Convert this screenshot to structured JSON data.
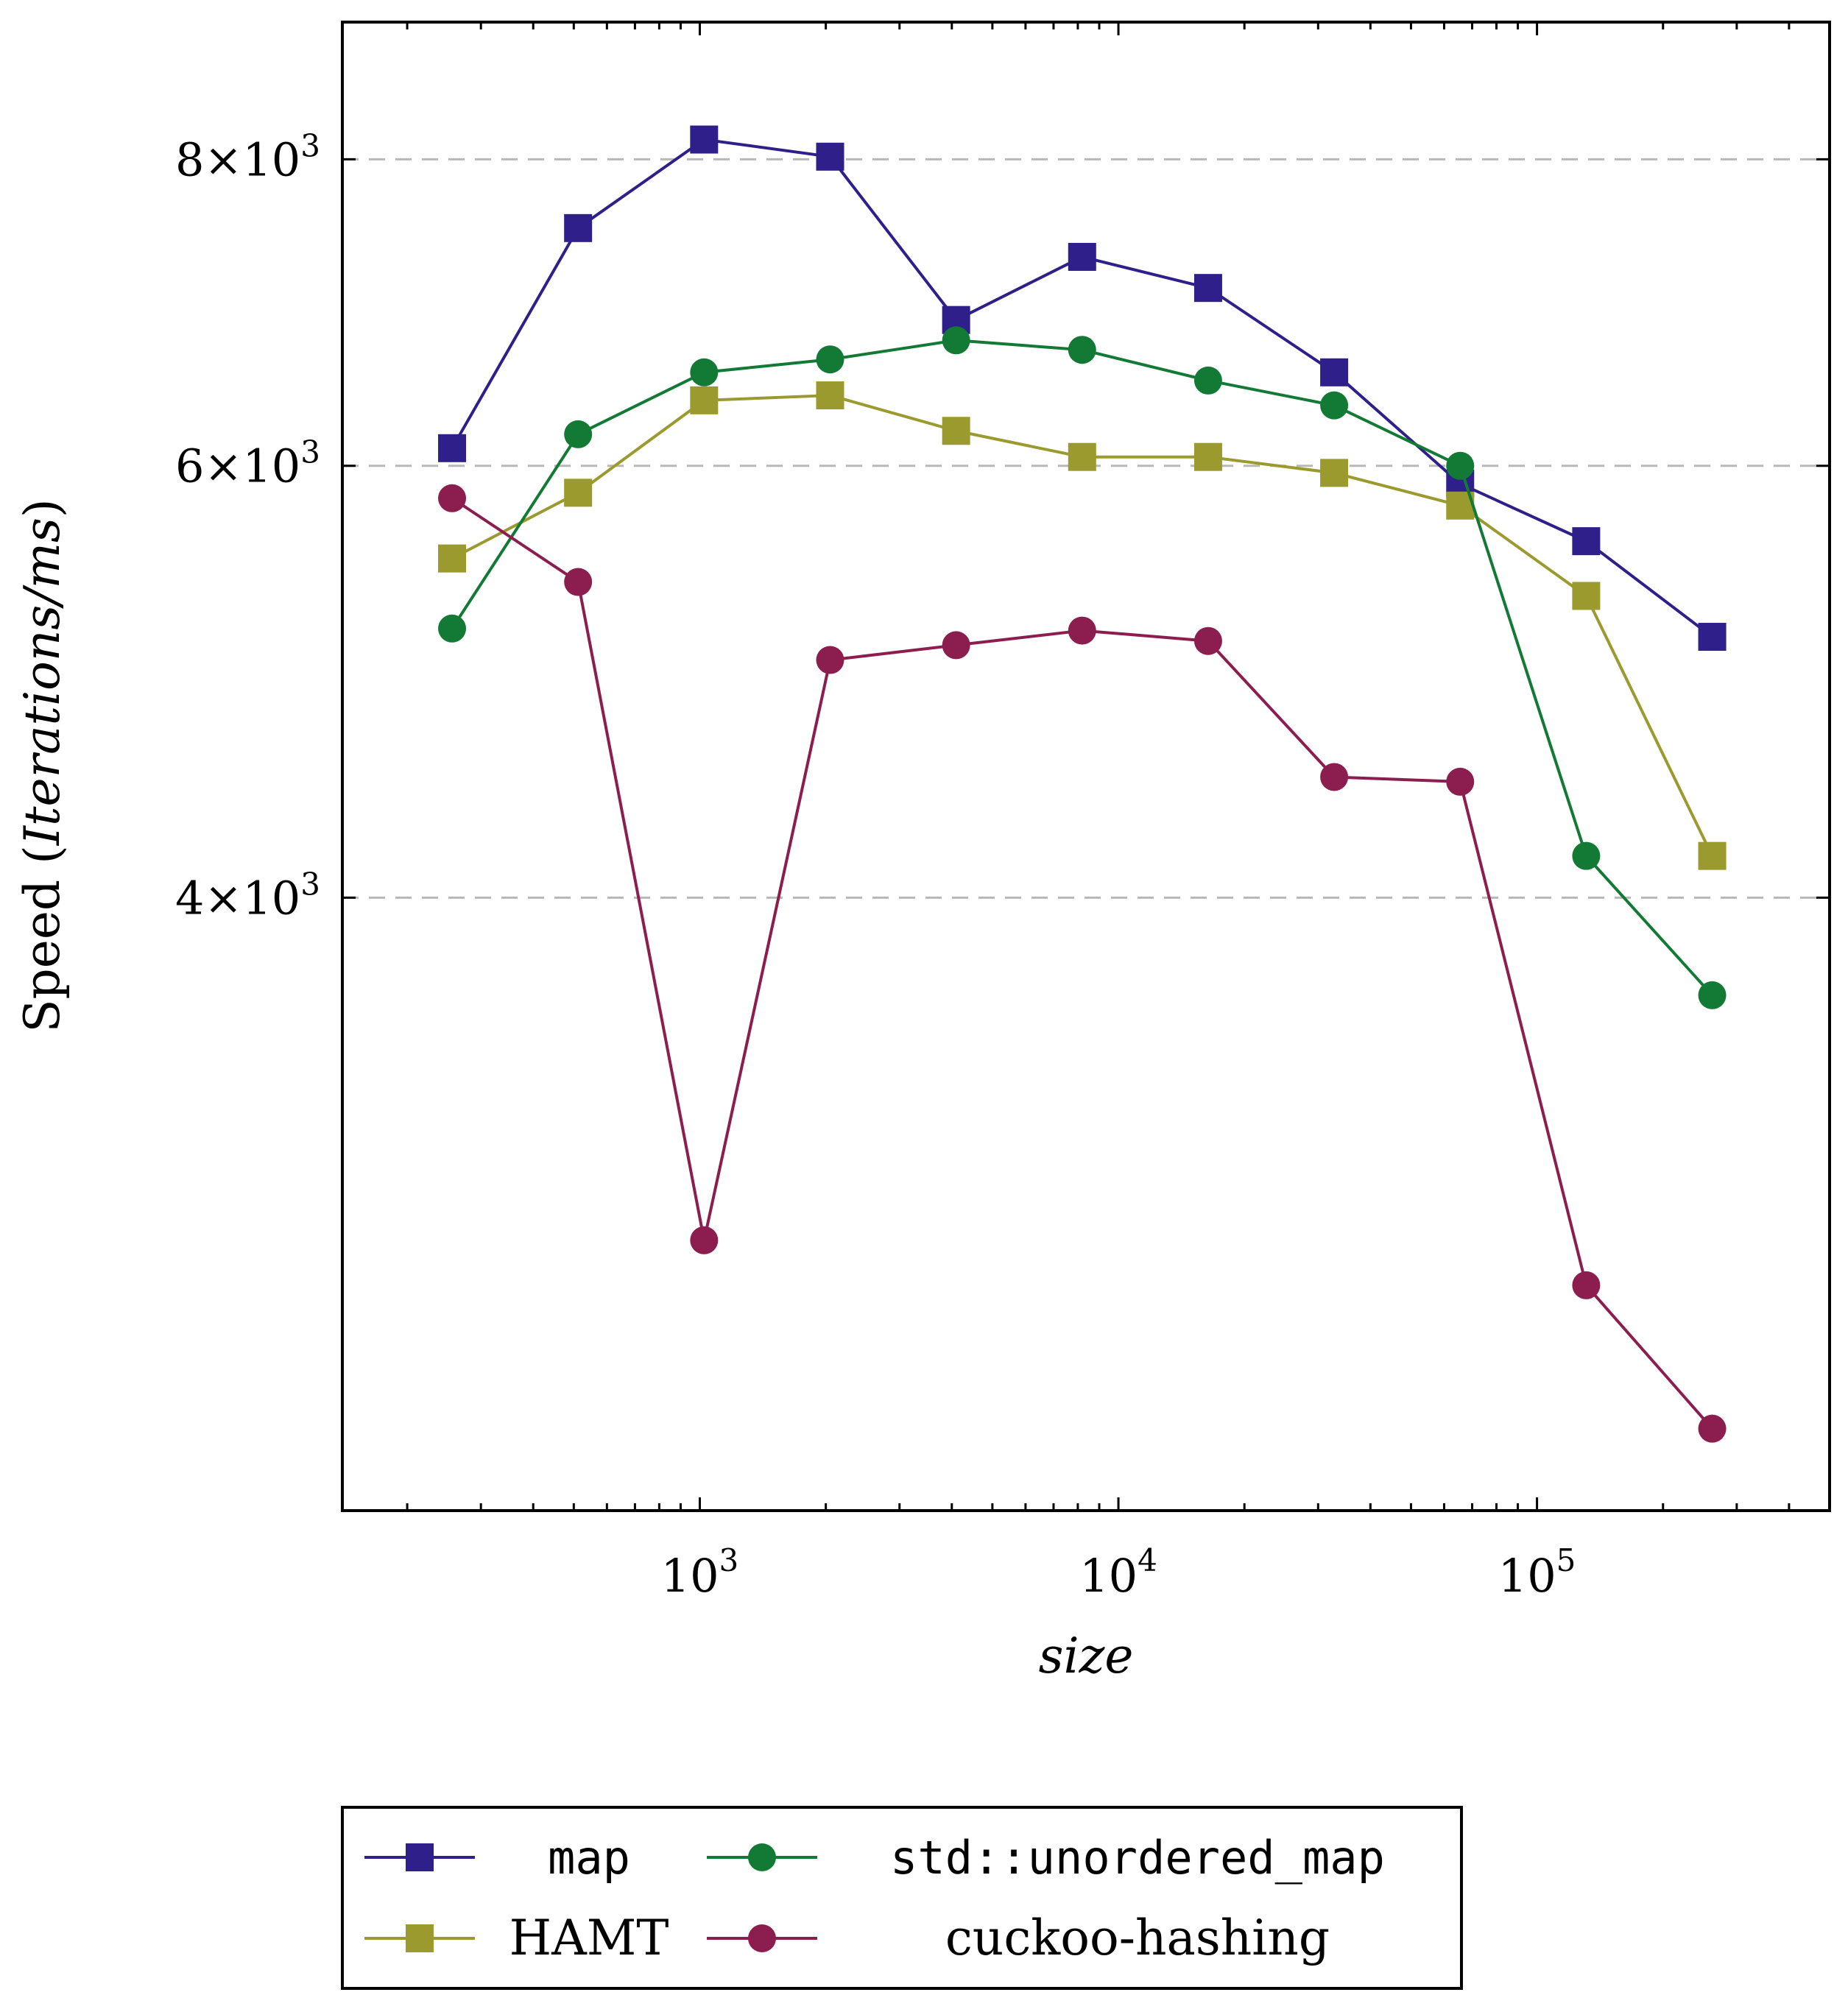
{
  "chart_data": {
    "type": "line",
    "title": "",
    "xlabel": "size",
    "ylabel": "Speed",
    "ylabel_unit": "Iterations/ms",
    "x_scale": "log",
    "y_scale": "log",
    "xlim": [
      140,
      500000
    ],
    "ylim": [
      2250,
      9100
    ],
    "x_ticks": [
      {
        "value": 1000,
        "base": "10",
        "exp": "3"
      },
      {
        "value": 10000,
        "base": "10",
        "exp": "4"
      },
      {
        "value": 100000,
        "base": "10",
        "exp": "5"
      }
    ],
    "y_ticks": [
      {
        "value": 4000,
        "mant": "4",
        "times": "×",
        "base": "10",
        "exp": "3"
      },
      {
        "value": 6000,
        "mant": "6",
        "times": "×",
        "base": "10",
        "exp": "3"
      },
      {
        "value": 8000,
        "mant": "8",
        "times": "×",
        "base": "10",
        "exp": "3"
      }
    ],
    "grid": "y-major-dashed",
    "legend_position": "bottom-outside",
    "x": [
      256,
      512,
      1024,
      2048,
      4096,
      8192,
      16384,
      32768,
      65536,
      131072,
      262144
    ],
    "series": [
      {
        "name": "map",
        "color": "#2e1f8a",
        "marker": "square",
        "monospace": true,
        "values": [
          6100,
          7500,
          8150,
          8020,
          6880,
          7300,
          7090,
          6550,
          5900,
          5590,
          5110
        ]
      },
      {
        "name": "std::unordered_map",
        "color": "#137a35",
        "marker": "circle",
        "monospace": true,
        "values": [
          5150,
          6180,
          6550,
          6630,
          6750,
          6690,
          6500,
          6350,
          6000,
          4160,
          3650
        ]
      },
      {
        "name": "HAMT",
        "color": "#9a9a2e",
        "marker": "square",
        "monospace": false,
        "values": [
          5500,
          5850,
          6380,
          6410,
          6200,
          6050,
          6050,
          5960,
          5780,
          5310,
          4160
        ]
      },
      {
        "name": "cuckoo-hashing",
        "color": "#8b1e4e",
        "marker": "circle",
        "monospace": false,
        "values": [
          5820,
          5380,
          2900,
          5000,
          5070,
          5140,
          5090,
          4480,
          4460,
          2780,
          2430
        ]
      }
    ]
  }
}
